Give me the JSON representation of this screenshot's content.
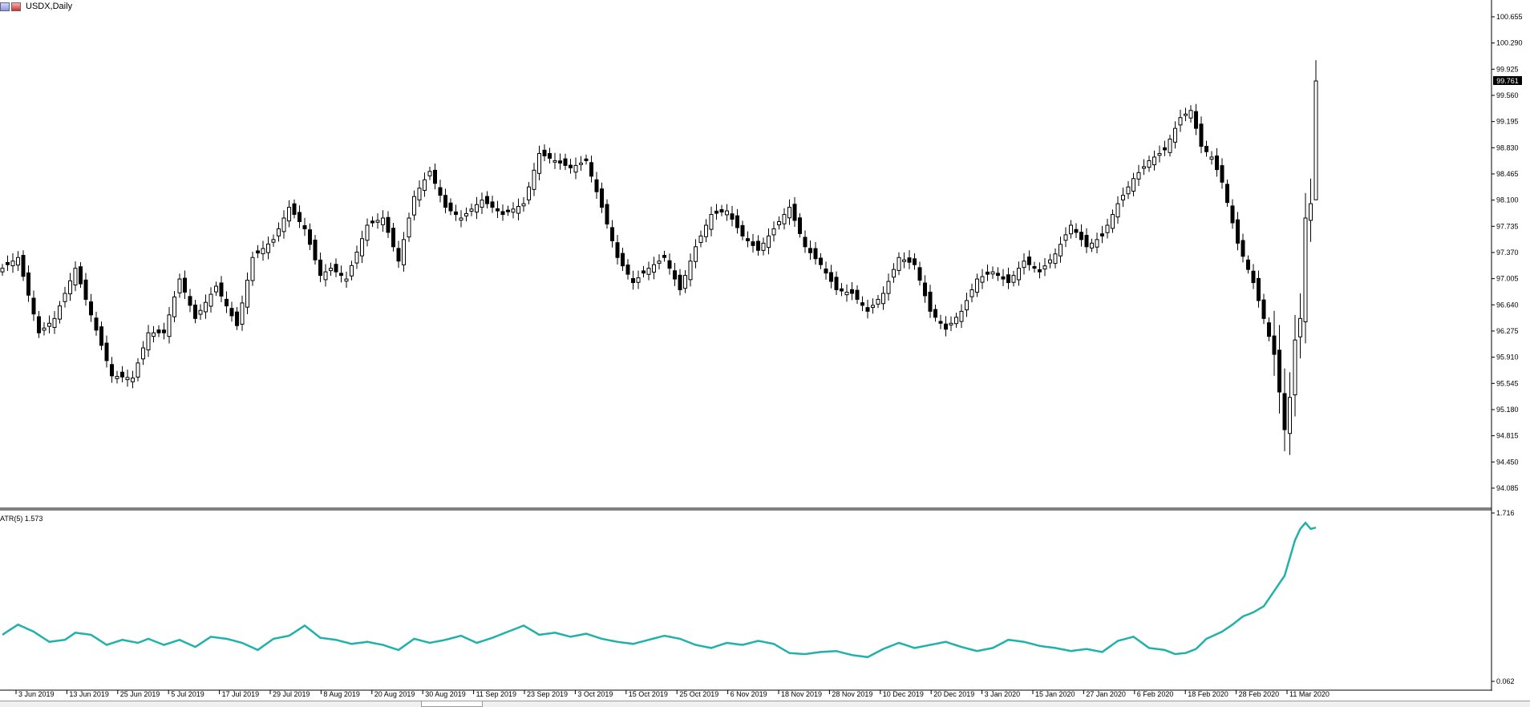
{
  "window": {
    "title": "USDX,Daily",
    "current_price_label": "99.761"
  },
  "indicator": {
    "label": "ATR(5) 1.573"
  },
  "chart_data": [
    {
      "type": "candlestick",
      "symbol": "USDX",
      "timeframe": "Daily",
      "ylim": [
        93.85,
        100.8
      ],
      "y_tick_labels": [
        "100.655",
        "100.290",
        "99.925",
        "99.560",
        "99.195",
        "98.830",
        "98.465",
        "98.100",
        "97.735",
        "97.370",
        "97.005",
        "96.640",
        "96.275",
        "95.910",
        "95.545",
        "95.180",
        "94.815",
        "94.450",
        "94.085"
      ],
      "x_tick_labels": [
        "3 Jun 2019",
        "13 Jun 2019",
        "25 Jun 2019",
        "5 Jul 2019",
        "17 Jul 2019",
        "29 Jul 2019",
        "8 Aug 2019",
        "20 Aug 2019",
        "30 Aug 2019",
        "11 Sep 2019",
        "23 Sep 2019",
        "3 Oct 2019",
        "15 Oct 2019",
        "25 Oct 2019",
        "6 Nov 2019",
        "18 Nov 2019",
        "28 Nov 2019",
        "10 Dec 2019",
        "20 Dec 2019",
        "3 Jan 2020",
        "15 Jan 2020",
        "27 Jan 2020",
        "6 Feb 2020",
        "18 Feb 2020",
        "28 Feb 2020",
        "11 Mar 2020"
      ],
      "close_anchors": [
        [
          0,
          97.15
        ],
        [
          3,
          97.3
        ],
        [
          7,
          96.25
        ],
        [
          10,
          96.45
        ],
        [
          14,
          97.15
        ],
        [
          17,
          96.5
        ],
        [
          21,
          95.65
        ],
        [
          25,
          95.62
        ],
        [
          28,
          96.25
        ],
        [
          31,
          96.25
        ],
        [
          34,
          97.0
        ],
        [
          37,
          96.45
        ],
        [
          41,
          96.9
        ],
        [
          45,
          96.35
        ],
        [
          48,
          97.3
        ],
        [
          52,
          97.55
        ],
        [
          55,
          98.0
        ],
        [
          58,
          97.7
        ],
        [
          61,
          97.05
        ],
        [
          63,
          97.15
        ],
        [
          66,
          97.0
        ],
        [
          70,
          97.75
        ],
        [
          73,
          97.85
        ],
        [
          76,
          97.25
        ],
        [
          79,
          98.15
        ],
        [
          82,
          98.5
        ],
        [
          85,
          98.0
        ],
        [
          88,
          97.85
        ],
        [
          92,
          98.1
        ],
        [
          96,
          97.9
        ],
        [
          100,
          98.05
        ],
        [
          103,
          98.75
        ],
        [
          106,
          98.65
        ],
        [
          109,
          98.55
        ],
        [
          112,
          98.65
        ],
        [
          115,
          98.0
        ],
        [
          118,
          97.3
        ],
        [
          121,
          96.95
        ],
        [
          124,
          97.15
        ],
        [
          127,
          97.3
        ],
        [
          130,
          96.85
        ],
        [
          133,
          97.45
        ],
        [
          136,
          97.9
        ],
        [
          139,
          97.95
        ],
        [
          142,
          97.6
        ],
        [
          145,
          97.4
        ],
        [
          148,
          97.7
        ],
        [
          151,
          98.0
        ],
        [
          154,
          97.45
        ],
        [
          157,
          97.2
        ],
        [
          160,
          96.85
        ],
        [
          163,
          96.8
        ],
        [
          166,
          96.55
        ],
        [
          169,
          96.8
        ],
        [
          172,
          97.3
        ],
        [
          175,
          97.2
        ],
        [
          178,
          96.55
        ],
        [
          181,
          96.3
        ],
        [
          184,
          96.55
        ],
        [
          187,
          97.0
        ],
        [
          190,
          97.1
        ],
        [
          193,
          96.95
        ],
        [
          196,
          97.25
        ],
        [
          199,
          97.1
        ],
        [
          202,
          97.35
        ],
        [
          205,
          97.75
        ],
        [
          208,
          97.45
        ],
        [
          211,
          97.6
        ],
        [
          214,
          98.05
        ],
        [
          217,
          98.4
        ],
        [
          220,
          98.65
        ],
        [
          223,
          98.8
        ],
        [
          226,
          99.25
        ],
        [
          228,
          99.35
        ],
        [
          230,
          98.85
        ],
        [
          232,
          98.7
        ],
        [
          234,
          98.35
        ],
        [
          237,
          97.5
        ],
        [
          240,
          96.95
        ],
        [
          242,
          96.45
        ],
        [
          244,
          95.95
        ],
        [
          246,
          94.9
        ],
        [
          247,
          95.35
        ],
        [
          248,
          96.15
        ],
        [
          249,
          96.45
        ],
        [
          250,
          97.85
        ],
        [
          251,
          98.05
        ],
        [
          252,
          99.761
        ]
      ]
    },
    {
      "type": "line",
      "name": "ATR(5)",
      "last_value": 1.573,
      "ylim": [
        0.062,
        1.716
      ],
      "y_tick_labels": [
        "1.716",
        "0.062"
      ],
      "values_anchors": [
        [
          0,
          0.52
        ],
        [
          3,
          0.62
        ],
        [
          6,
          0.55
        ],
        [
          9,
          0.45
        ],
        [
          12,
          0.47
        ],
        [
          14,
          0.54
        ],
        [
          17,
          0.52
        ],
        [
          20,
          0.42
        ],
        [
          23,
          0.47
        ],
        [
          26,
          0.44
        ],
        [
          28,
          0.48
        ],
        [
          31,
          0.42
        ],
        [
          34,
          0.47
        ],
        [
          37,
          0.4
        ],
        [
          40,
          0.5
        ],
        [
          43,
          0.48
        ],
        [
          46,
          0.44
        ],
        [
          49,
          0.37
        ],
        [
          52,
          0.48
        ],
        [
          55,
          0.51
        ],
        [
          58,
          0.61
        ],
        [
          61,
          0.49
        ],
        [
          64,
          0.47
        ],
        [
          67,
          0.43
        ],
        [
          70,
          0.45
        ],
        [
          73,
          0.42
        ],
        [
          76,
          0.37
        ],
        [
          79,
          0.48
        ],
        [
          82,
          0.44
        ],
        [
          85,
          0.47
        ],
        [
          88,
          0.51
        ],
        [
          91,
          0.44
        ],
        [
          94,
          0.49
        ],
        [
          97,
          0.55
        ],
        [
          100,
          0.61
        ],
        [
          103,
          0.52
        ],
        [
          106,
          0.54
        ],
        [
          109,
          0.5
        ],
        [
          112,
          0.53
        ],
        [
          115,
          0.48
        ],
        [
          118,
          0.45
        ],
        [
          121,
          0.43
        ],
        [
          124,
          0.47
        ],
        [
          127,
          0.51
        ],
        [
          130,
          0.48
        ],
        [
          133,
          0.42
        ],
        [
          136,
          0.39
        ],
        [
          139,
          0.44
        ],
        [
          142,
          0.42
        ],
        [
          145,
          0.46
        ],
        [
          148,
          0.43
        ],
        [
          151,
          0.34
        ],
        [
          154,
          0.33
        ],
        [
          157,
          0.35
        ],
        [
          160,
          0.36
        ],
        [
          163,
          0.32
        ],
        [
          166,
          0.3
        ],
        [
          169,
          0.38
        ],
        [
          172,
          0.44
        ],
        [
          175,
          0.39
        ],
        [
          178,
          0.42
        ],
        [
          181,
          0.45
        ],
        [
          184,
          0.4
        ],
        [
          187,
          0.36
        ],
        [
          190,
          0.39
        ],
        [
          193,
          0.47
        ],
        [
          196,
          0.45
        ],
        [
          199,
          0.41
        ],
        [
          202,
          0.39
        ],
        [
          205,
          0.36
        ],
        [
          208,
          0.38
        ],
        [
          211,
          0.35
        ],
        [
          214,
          0.46
        ],
        [
          217,
          0.5
        ],
        [
          220,
          0.39
        ],
        [
          223,
          0.37
        ],
        [
          225,
          0.33
        ],
        [
          227,
          0.34
        ],
        [
          229,
          0.38
        ],
        [
          231,
          0.48
        ],
        [
          234,
          0.55
        ],
        [
          236,
          0.62
        ],
        [
          238,
          0.7
        ],
        [
          240,
          0.74
        ],
        [
          242,
          0.8
        ],
        [
          244,
          0.95
        ],
        [
          246,
          1.1
        ],
        [
          248,
          1.45
        ],
        [
          249,
          1.56
        ],
        [
          250,
          1.62
        ],
        [
          251,
          1.56
        ],
        [
          252,
          1.573
        ]
      ]
    }
  ],
  "colors": {
    "background": "#ffffff",
    "bull_body": "#ffffff",
    "bear_body": "#000000",
    "candle_outline": "#000000",
    "atr_line": "#20b2aa",
    "axis": "#000000",
    "price_label_bg": "#000000",
    "price_label_text": "#ffffff"
  }
}
